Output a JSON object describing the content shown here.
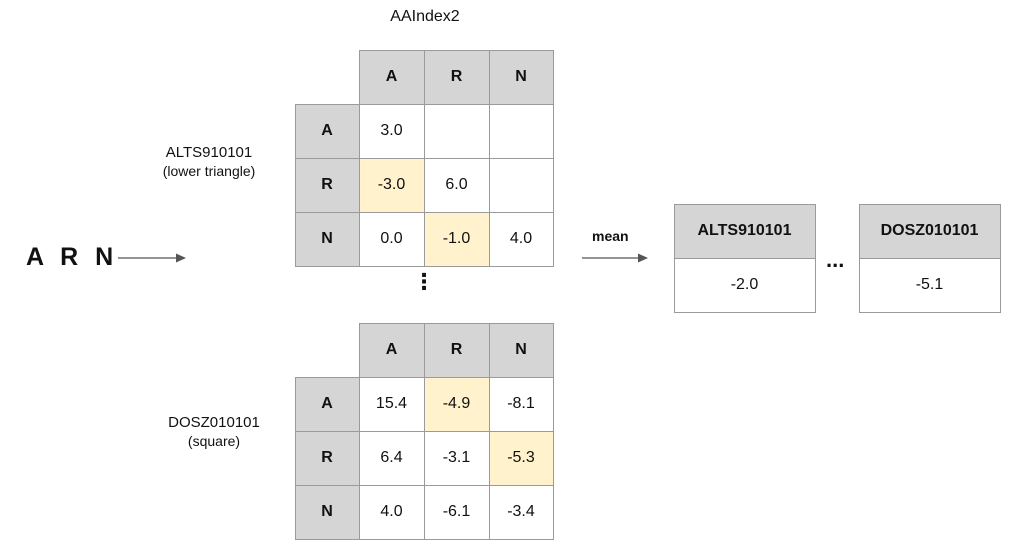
{
  "title": "AAIndex2",
  "sequence": "A R N",
  "mean_label": "mean",
  "vertical_ellipsis": "⋮",
  "horizontal_ellipsis": "...",
  "colors": {
    "header": "#d5d5d5",
    "highlight": "#fff2cc",
    "border": "#9a9a9a"
  },
  "matrices": [
    {
      "name": "ALTS910101",
      "type_label": "(lower triangle)",
      "columns": [
        "A",
        "R",
        "N"
      ],
      "rows": [
        {
          "label": "A",
          "cells": [
            "3.0",
            "",
            ""
          ]
        },
        {
          "label": "R",
          "cells": [
            "-3.0",
            "6.0",
            ""
          ]
        },
        {
          "label": "N",
          "cells": [
            "0.0",
            "-1.0",
            "4.0"
          ]
        }
      ]
    },
    {
      "name": "DOSZ010101",
      "type_label": "(square)",
      "columns": [
        "A",
        "R",
        "N"
      ],
      "rows": [
        {
          "label": "A",
          "cells": [
            "15.4",
            "-4.9",
            "-8.1"
          ]
        },
        {
          "label": "R",
          "cells": [
            "6.4",
            "-3.1",
            "-5.3"
          ]
        },
        {
          "label": "N",
          "cells": [
            "4.0",
            "-6.1",
            "-3.4"
          ]
        }
      ]
    }
  ],
  "results": [
    {
      "name": "ALTS910101",
      "value": "-2.0"
    },
    {
      "name": "DOSZ010101",
      "value": "-5.1"
    }
  ]
}
